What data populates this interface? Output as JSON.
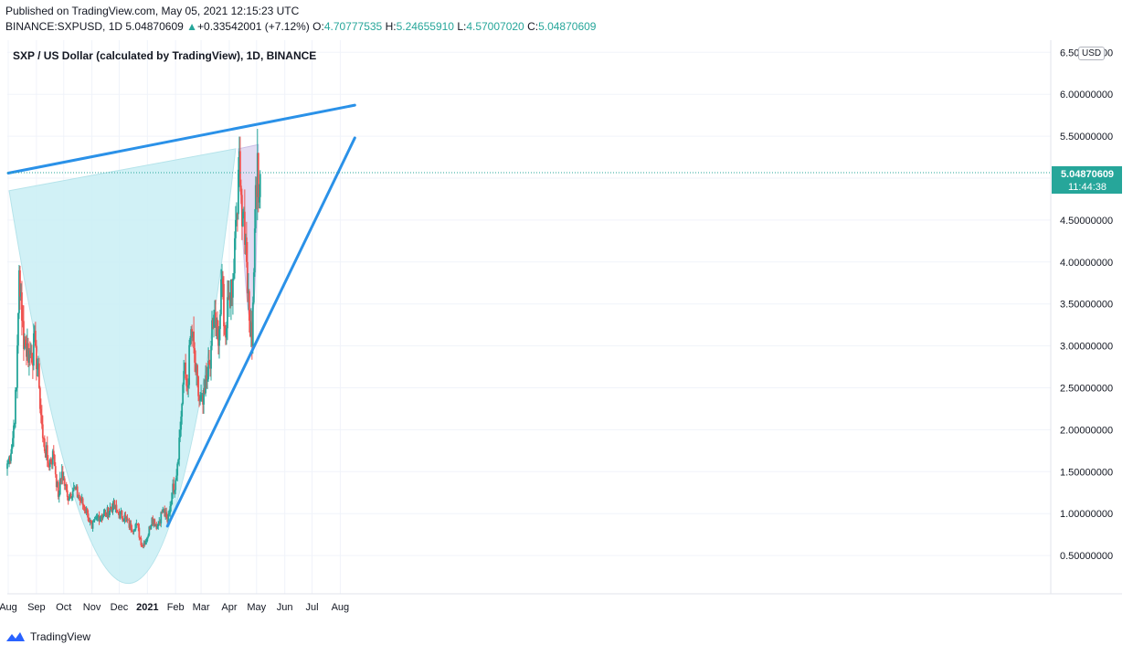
{
  "header": {
    "published": "Published on TradingView.com, May 05, 2021 12:15:23 UTC",
    "symbol": "BINANCE:SXPUSD, 1D",
    "close_val": "5.04870609",
    "change": "+0.33542001 (+7.12%)",
    "open_label": "O:",
    "open_val": "4.70777535",
    "high_label": "H:",
    "high_val": "5.24655910",
    "low_label": "L:",
    "low_val": "4.57007020",
    "close_label": "C:",
    "close_val2": "5.04870609"
  },
  "footer": {
    "brand": "TradingView",
    "icon": "tradingview-logo-icon"
  },
  "colors": {
    "up": "#26a69a",
    "down": "#ef5350",
    "trendline": "#2a91e8",
    "cup_fill": "#c9eff4",
    "handle_fill": "#ddd6f0",
    "price_tag": "#26a69a"
  },
  "chart_data": {
    "type": "candlestick",
    "title": "SXP / US Dollar (calculated by TradingView), 1D, BINANCE",
    "currency": "USD",
    "x_labels": [
      "Aug",
      "Sep",
      "Oct",
      "Nov",
      "Dec",
      "2021",
      "Feb",
      "Mar",
      "Apr",
      "May",
      "Jun",
      "Jul",
      "Aug"
    ],
    "y_ticks": [
      "6.50000000",
      "6.00000000",
      "5.50000000",
      "5.00000000",
      "4.50000000",
      "4.00000000",
      "3.50000000",
      "3.00000000",
      "2.50000000",
      "2.00000000",
      "1.50000000",
      "1.00000000",
      "0.50000000"
    ],
    "ylim": [
      0,
      6.5
    ],
    "last_price": "5.04870609",
    "countdown": "11:44:38",
    "close_anchors": [
      [
        "2020-08-01",
        1.6
      ],
      [
        "2020-08-06",
        1.9
      ],
      [
        "2020-08-10",
        2.5
      ],
      [
        "2020-08-13",
        3.9
      ],
      [
        "2020-08-16",
        3.3
      ],
      [
        "2020-08-20",
        3.0
      ],
      [
        "2020-08-25",
        2.9
      ],
      [
        "2020-08-31",
        3.0
      ],
      [
        "2020-09-04",
        2.5
      ],
      [
        "2020-09-08",
        1.9
      ],
      [
        "2020-09-14",
        1.6
      ],
      [
        "2020-09-20",
        1.7
      ],
      [
        "2020-09-25",
        1.2
      ],
      [
        "2020-09-29",
        1.5
      ],
      [
        "2020-10-05",
        1.2
      ],
      [
        "2020-10-12",
        1.3
      ],
      [
        "2020-10-20",
        1.15
      ],
      [
        "2020-10-27",
        1.0
      ],
      [
        "2020-11-01",
        0.82
      ],
      [
        "2020-11-08",
        0.98
      ],
      [
        "2020-11-16",
        0.98
      ],
      [
        "2020-11-24",
        1.1
      ],
      [
        "2020-11-30",
        1.0
      ],
      [
        "2020-12-08",
        0.95
      ],
      [
        "2020-12-14",
        0.82
      ],
      [
        "2020-12-20",
        0.88
      ],
      [
        "2020-12-26",
        0.62
      ],
      [
        "2021-01-01",
        0.72
      ],
      [
        "2021-01-06",
        0.95
      ],
      [
        "2021-01-12",
        0.85
      ],
      [
        "2021-01-18",
        1.05
      ],
      [
        "2021-01-23",
        0.9
      ],
      [
        "2021-01-28",
        1.25
      ],
      [
        "2021-02-01",
        1.4
      ],
      [
        "2021-02-06",
        2.0
      ],
      [
        "2021-02-10",
        2.7
      ],
      [
        "2021-02-14",
        2.5
      ],
      [
        "2021-02-18",
        3.2
      ],
      [
        "2021-02-22",
        2.8
      ],
      [
        "2021-02-26",
        2.4
      ],
      [
        "2021-03-03",
        2.3
      ],
      [
        "2021-03-08",
        2.6
      ],
      [
        "2021-03-12",
        3.0
      ],
      [
        "2021-03-16",
        3.4
      ],
      [
        "2021-03-20",
        3.0
      ],
      [
        "2021-03-24",
        3.8
      ],
      [
        "2021-03-28",
        3.1
      ],
      [
        "2021-04-01",
        3.6
      ],
      [
        "2021-04-05",
        3.8
      ],
      [
        "2021-04-08",
        4.5
      ],
      [
        "2021-04-11",
        5.1
      ],
      [
        "2021-04-14",
        4.8
      ],
      [
        "2021-04-17",
        4.6
      ],
      [
        "2021-04-20",
        4.0
      ],
      [
        "2021-04-23",
        3.3
      ],
      [
        "2021-04-26",
        3.0
      ],
      [
        "2021-04-29",
        4.4
      ],
      [
        "2021-05-02",
        5.3
      ],
      [
        "2021-05-03",
        4.71
      ],
      [
        "2021-05-05",
        5.05
      ]
    ],
    "trendlines": [
      {
        "name": "upper-trendline",
        "from": [
          "2020-08-01",
          5.06
        ],
        "to": [
          "2021-08-17",
          5.87
        ]
      },
      {
        "name": "lower-trendline",
        "from": [
          "2021-01-23",
          0.85
        ],
        "to": [
          "2021-08-17",
          5.48
        ]
      }
    ],
    "cup": {
      "start": [
        "2020-08-02",
        4.85
      ],
      "end": [
        "2021-04-08",
        5.35
      ],
      "bottom": [
        "2020-12-14",
        0.17
      ]
    },
    "handle": {
      "start": [
        "2021-04-11",
        5.35
      ],
      "end": [
        "2021-05-03",
        5.4
      ],
      "bottom": [
        "2021-04-25",
        3.28
      ]
    }
  }
}
